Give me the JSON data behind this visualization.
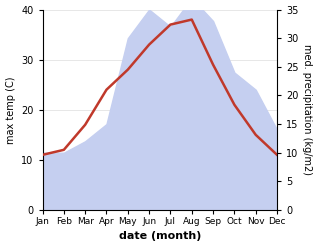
{
  "months": [
    "Jan",
    "Feb",
    "Mar",
    "Apr",
    "May",
    "Jun",
    "Jul",
    "Aug",
    "Sep",
    "Oct",
    "Nov",
    "Dec"
  ],
  "temperature": [
    11,
    12,
    17,
    24,
    28,
    33,
    37,
    38,
    29,
    21,
    15,
    11
  ],
  "precipitation": [
    10,
    10,
    12,
    15,
    30,
    35,
    32,
    37,
    33,
    24,
    21,
    14
  ],
  "temp_color": "#c0392b",
  "precip_fill_color": "#c5cff0",
  "left_ylabel": "max temp (C)",
  "right_ylabel": "med. precipitation (kg/m2)",
  "xlabel": "date (month)",
  "ylim_left": [
    0,
    40
  ],
  "ylim_right": [
    0,
    35
  ],
  "background_color": "#ffffff"
}
